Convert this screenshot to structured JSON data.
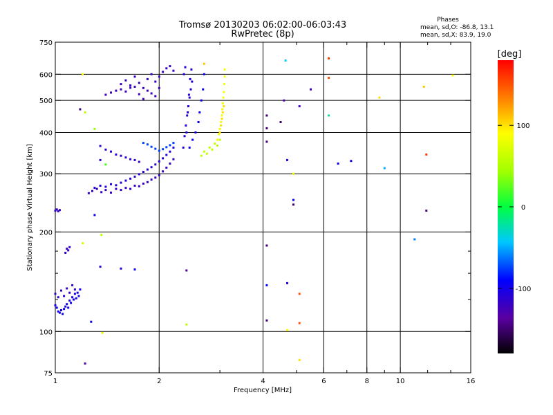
{
  "chart_data": {
    "type": "scatter",
    "title": "Tromsø 20130203 06:02:00-06:03:43",
    "subtitle": "RwPretec (8p)",
    "xlabel": "Frequency [MHz]",
    "ylabel": "Stationary phase Virtual Height [km]",
    "x_scale": "log",
    "y_scale": "log",
    "xlim": [
      1,
      16
    ],
    "ylim": [
      75,
      750
    ],
    "x_ticks": [
      1,
      2,
      4,
      6,
      8,
      10,
      16
    ],
    "x_tick_labels": [
      "1",
      "2",
      "4",
      "6",
      "8",
      "10",
      "16"
    ],
    "x_minor_ticks": [
      3,
      5,
      7,
      9,
      12,
      14
    ],
    "y_ticks": [
      75,
      100,
      200,
      300,
      400,
      500,
      600,
      750
    ],
    "y_tick_labels": [
      "75",
      "100",
      "200",
      "300",
      "400",
      "500",
      "600",
      "750"
    ],
    "y_minor_ticks": [
      125,
      150,
      175
    ],
    "grid": true,
    "info": {
      "heading": "Phases",
      "line1": "mean, sd,O: -86.8, 13.1",
      "line2": "mean, sd,X: 83.9, 19.0"
    },
    "colorbar": {
      "label": "[deg]",
      "range": [
        -180,
        180
      ],
      "ticks": [
        100,
        0,
        -100
      ],
      "tick_labels": [
        "100",
        "0",
        "-100"
      ],
      "colormap": "rainbow"
    },
    "groups": [
      {
        "x": [
          1.0,
          1.01,
          1.02,
          1.03,
          1.04,
          1.05,
          1.06,
          1.07,
          1.08,
          1.09,
          1.1,
          1.11,
          1.12,
          1.13,
          1.14,
          1.15,
          1.16,
          1.17,
          1.18
        ],
        "y": [
          120,
          118,
          115,
          114,
          116,
          113,
          117,
          119,
          121,
          118,
          124,
          122,
          127,
          125,
          130,
          126,
          131,
          128,
          134
        ],
        "phase": -100
      },
      {
        "x": [
          1.0,
          1.02,
          1.04,
          1.06,
          1.08,
          1.1,
          1.12,
          1.14
        ],
        "y": [
          130,
          127,
          133,
          128,
          135,
          131,
          138,
          134
        ],
        "phase": -115
      },
      {
        "x": [
          1.0,
          1.01,
          1.02,
          1.03
        ],
        "y": [
          232,
          234,
          231,
          233
        ],
        "phase": -115
      },
      {
        "x": [
          1.07,
          1.08,
          1.09,
          1.1
        ],
        "y": [
          173,
          178,
          176,
          180
        ],
        "phase": -115
      },
      {
        "x": [
          1.25,
          1.28,
          1.32,
          1.36,
          1.4,
          1.45,
          1.5,
          1.55,
          1.6,
          1.65,
          1.7,
          1.75,
          1.8,
          1.85,
          1.9,
          1.95,
          2.0,
          2.05,
          2.1,
          2.15,
          2.2
        ],
        "y": [
          262,
          266,
          270,
          264,
          268,
          263,
          270,
          268,
          272,
          270,
          276,
          275,
          280,
          283,
          288,
          292,
          297,
          305,
          313,
          322,
          332
        ],
        "phase": -118
      },
      {
        "x": [
          1.3,
          1.35,
          1.4,
          1.45,
          1.5,
          1.55,
          1.6,
          1.65,
          1.7,
          1.75,
          1.8,
          1.85,
          1.9,
          1.95,
          2.0,
          2.05,
          2.1,
          2.15,
          2.2
        ],
        "y": [
          272,
          276,
          274,
          279,
          277,
          282,
          286,
          290,
          294,
          299,
          304,
          309,
          314,
          320,
          327,
          334,
          342,
          350,
          360
        ],
        "phase": -108
      },
      {
        "x": [
          1.35,
          1.4,
          1.45,
          1.5,
          1.55,
          1.6,
          1.65,
          1.7,
          1.75
        ],
        "y": [
          364,
          355,
          350,
          343,
          340,
          336,
          332,
          330,
          326
        ],
        "phase": -115
      },
      {
        "x": [
          1.8,
          1.85,
          1.9,
          1.95,
          2.0,
          2.05,
          2.1,
          2.15,
          2.2
        ],
        "y": [
          372,
          368,
          362,
          357,
          352,
          356,
          361,
          366,
          372
        ],
        "phase": -75
      },
      {
        "x": [
          1.55,
          1.6,
          1.65,
          1.7,
          1.75,
          1.8,
          1.85,
          1.9,
          1.95,
          2.0,
          2.05,
          2.1,
          2.15,
          2.2
        ],
        "y": [
          560,
          575,
          555,
          590,
          565,
          545,
          580,
          600,
          570,
          590,
          610,
          625,
          635,
          615
        ],
        "phase": -118
      },
      {
        "x": [
          1.4,
          1.45,
          1.5,
          1.55,
          1.6,
          1.65,
          1.7,
          1.75,
          1.8,
          1.85,
          1.9,
          1.95,
          2.0
        ],
        "y": [
          520,
          528,
          535,
          540,
          532,
          546,
          550,
          522,
          505,
          535,
          525,
          515,
          545
        ],
        "phase": -122
      },
      {
        "x": [
          2.35,
          2.37,
          2.39,
          2.41,
          2.43,
          2.45,
          2.47,
          2.49,
          2.36,
          2.38,
          2.4,
          2.42,
          2.44,
          2.46,
          2.48
        ],
        "y": [
          360,
          390,
          420,
          450,
          480,
          510,
          540,
          570,
          600,
          630,
          400,
          460,
          520,
          580,
          620
        ],
        "phase": -108
      },
      {
        "x": [
          2.45,
          2.5,
          2.55,
          2.6,
          2.62,
          2.65,
          2.68,
          2.7
        ],
        "y": [
          360,
          380,
          400,
          430,
          460,
          500,
          540,
          600
        ],
        "phase": -95
      },
      {
        "x": [
          2.65,
          2.7,
          2.75,
          2.8,
          2.85,
          2.9,
          2.95,
          3.0
        ],
        "y": [
          340,
          350,
          345,
          360,
          355,
          370,
          365,
          380
        ],
        "phase": 60
      },
      {
        "x": [
          2.95,
          2.98,
          3.0,
          3.02,
          3.04,
          3.05,
          3.06,
          3.07,
          3.08,
          3.09,
          3.1,
          3.1
        ],
        "y": [
          380,
          395,
          410,
          430,
          450,
          470,
          490,
          510,
          530,
          560,
          590,
          620
        ],
        "phase": 85
      },
      {
        "x": [
          3.0,
          3.02,
          3.04,
          3.06,
          3.08
        ],
        "y": [
          400,
          420,
          440,
          460,
          480
        ],
        "phase": 100
      }
    ],
    "isolated": [
      {
        "x": 1.18,
        "y": 470,
        "phase": -150
      },
      {
        "x": 1.2,
        "y": 600,
        "phase": 90
      },
      {
        "x": 1.22,
        "y": 460,
        "phase": 60
      },
      {
        "x": 1.3,
        "y": 410,
        "phase": 40
      },
      {
        "x": 1.35,
        "y": 330,
        "phase": -110
      },
      {
        "x": 1.4,
        "y": 320,
        "phase": 20
      },
      {
        "x": 1.3,
        "y": 225,
        "phase": -100
      },
      {
        "x": 1.36,
        "y": 196,
        "phase": 60
      },
      {
        "x": 1.35,
        "y": 157,
        "phase": -110
      },
      {
        "x": 1.55,
        "y": 155,
        "phase": -110
      },
      {
        "x": 1.7,
        "y": 154,
        "phase": -100
      },
      {
        "x": 1.2,
        "y": 185,
        "phase": 70
      },
      {
        "x": 1.27,
        "y": 107,
        "phase": -100
      },
      {
        "x": 1.37,
        "y": 99,
        "phase": 80
      },
      {
        "x": 1.22,
        "y": 80,
        "phase": -130
      },
      {
        "x": 2.4,
        "y": 105,
        "phase": 60
      },
      {
        "x": 2.4,
        "y": 153,
        "phase": -140
      },
      {
        "x": 2.7,
        "y": 645,
        "phase": 110
      },
      {
        "x": 4.1,
        "y": 450,
        "phase": -150
      },
      {
        "x": 4.1,
        "y": 412,
        "phase": -150
      },
      {
        "x": 4.1,
        "y": 375,
        "phase": -150
      },
      {
        "x": 4.1,
        "y": 182,
        "phase": -150
      },
      {
        "x": 4.1,
        "y": 138,
        "phase": -90
      },
      {
        "x": 4.1,
        "y": 108,
        "phase": -150
      },
      {
        "x": 4.5,
        "y": 430,
        "phase": -150
      },
      {
        "x": 4.6,
        "y": 500,
        "phase": -130
      },
      {
        "x": 4.65,
        "y": 660,
        "phase": -40
      },
      {
        "x": 4.7,
        "y": 330,
        "phase": -110
      },
      {
        "x": 4.9,
        "y": 300,
        "phase": 80
      },
      {
        "x": 4.9,
        "y": 250,
        "phase": -90
      },
      {
        "x": 4.9,
        "y": 242,
        "phase": -150
      },
      {
        "x": 5.1,
        "y": 480,
        "phase": -120
      },
      {
        "x": 5.1,
        "y": 130,
        "phase": 150
      },
      {
        "x": 5.1,
        "y": 106,
        "phase": 150
      },
      {
        "x": 5.1,
        "y": 82,
        "phase": 100
      },
      {
        "x": 4.7,
        "y": 140,
        "phase": -110
      },
      {
        "x": 4.7,
        "y": 101,
        "phase": 90
      },
      {
        "x": 5.5,
        "y": 540,
        "phase": -120
      },
      {
        "x": 6.2,
        "y": 670,
        "phase": 160
      },
      {
        "x": 6.2,
        "y": 585,
        "phase": 150
      },
      {
        "x": 6.2,
        "y": 450,
        "phase": -20
      },
      {
        "x": 6.6,
        "y": 322,
        "phase": -100
      },
      {
        "x": 7.2,
        "y": 328,
        "phase": -100
      },
      {
        "x": 8.7,
        "y": 510,
        "phase": 100
      },
      {
        "x": 9.0,
        "y": 312,
        "phase": -50
      },
      {
        "x": 11.0,
        "y": 190,
        "phase": -60
      },
      {
        "x": 11.7,
        "y": 550,
        "phase": 110
      },
      {
        "x": 11.9,
        "y": 343,
        "phase": 160
      },
      {
        "x": 11.9,
        "y": 232,
        "phase": -150
      },
      {
        "x": 14.2,
        "y": 595,
        "phase": 90
      }
    ]
  }
}
